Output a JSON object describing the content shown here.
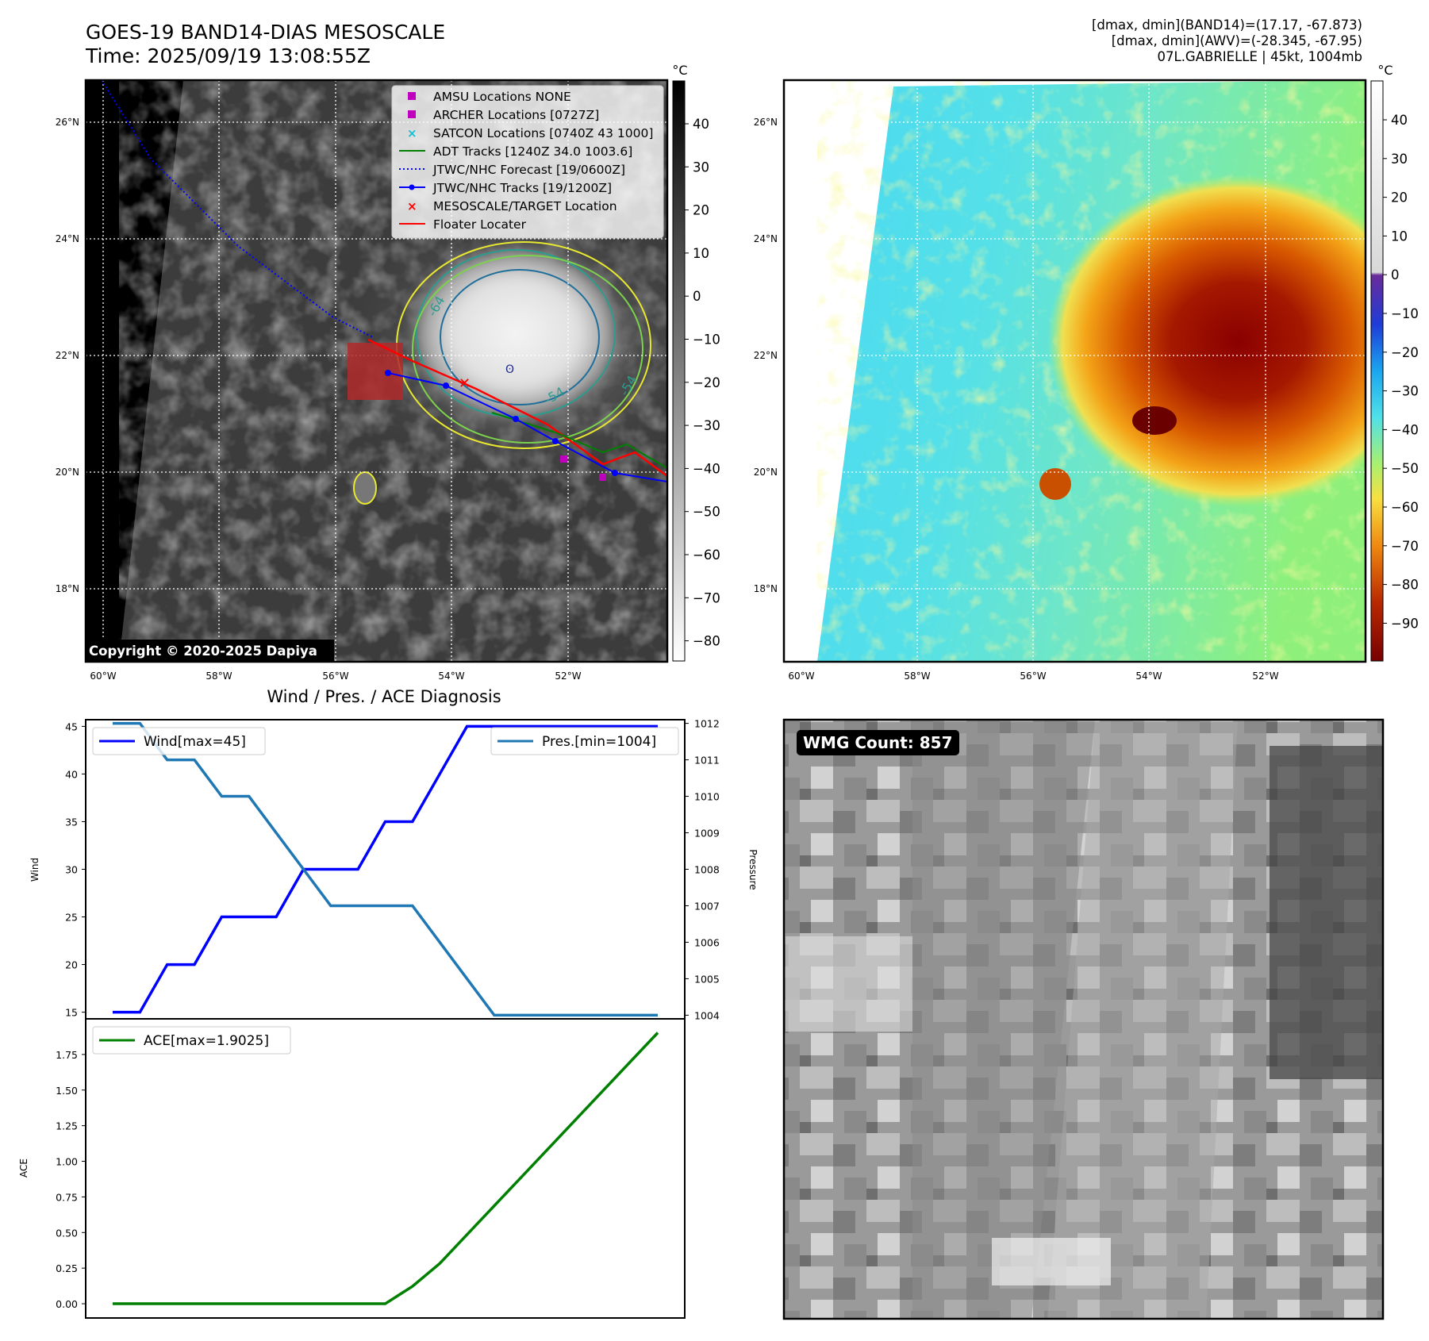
{
  "header": {
    "title_line1": "GOES-19 BAND14-DIAS MESOSCALE",
    "title_line2": "Time: 2025/09/19 13:08:55Z",
    "info_line1": "[dmax, dmin](BAND14)=(17.17, -67.873)",
    "info_line2": "[dmax, dmin](AWV)=(-28.345, -67.95)",
    "info_line3": "07L.GABRIELLE | 45kt, 1004mb"
  },
  "ir_panel": {
    "lat_labels": [
      "26°N",
      "24°N",
      "22°N",
      "20°N",
      "18°N"
    ],
    "lon_labels": [
      "60°W",
      "58°W",
      "56°W",
      "54°W",
      "52°W"
    ],
    "contour_labels": [
      "-64",
      "-54",
      "-54"
    ],
    "copyright": "Copyright © 2020-2025 Dapiya",
    "colorbar_unit": "°C",
    "colorbar_ticks": [
      "40",
      "30",
      "20",
      "10",
      "0",
      "−10",
      "−20",
      "−30",
      "−40",
      "−50",
      "−60",
      "−70",
      "−80"
    ],
    "legend": [
      {
        "label": "AMSU Locations NONE",
        "symbol": "square",
        "color": "#bf00bf"
      },
      {
        "label": "ARCHER Locations [0727Z]",
        "symbol": "square",
        "color": "#bf00bf"
      },
      {
        "label": "SATCON Locations [0740Z 43 1000]",
        "symbol": "x",
        "color": "#17becf"
      },
      {
        "label": "ADT Tracks [1240Z 34.0 1003.6]",
        "symbol": "line",
        "color": "#008000"
      },
      {
        "label": "JTWC/NHC Forecast [19/0600Z]",
        "symbol": "dotted",
        "color": "#0000ff"
      },
      {
        "label": "JTWC/NHC Tracks [19/1200Z]",
        "symbol": "line-dot",
        "color": "#0000ff"
      },
      {
        "label": "MESOSCALE/TARGET Location",
        "symbol": "x",
        "color": "#ff0000"
      },
      {
        "label": "Floater Locater",
        "symbol": "line",
        "color": "#ff0000"
      }
    ]
  },
  "awv_panel": {
    "lat_labels": [
      "26°N",
      "24°N",
      "22°N",
      "20°N",
      "18°N"
    ],
    "lon_labels": [
      "60°W",
      "58°W",
      "56°W",
      "54°W",
      "52°W"
    ],
    "colorbar_unit": "°C",
    "colorbar_ticks": [
      "40",
      "30",
      "20",
      "10",
      "0",
      "−10",
      "−20",
      "−30",
      "−40",
      "−50",
      "−60",
      "−70",
      "−80",
      "−90"
    ]
  },
  "wmg_panel": {
    "badge": "WMG Count: 857"
  },
  "chart_data": [
    {
      "type": "line",
      "title": "Wind / Pres. / ACE Diagnosis",
      "ylabel": "Wind",
      "y2label": "Pressure",
      "x": [
        0,
        1,
        2,
        3,
        4,
        5,
        6,
        7,
        8,
        9,
        10,
        11,
        12,
        13,
        14,
        15,
        16,
        17,
        18,
        19,
        20
      ],
      "ylim": [
        14.3,
        45.7
      ],
      "y2lim": [
        1003.9,
        1012.1
      ],
      "yticks": [
        "15",
        "20",
        "25",
        "30",
        "35",
        "40",
        "45"
      ],
      "y2ticks": [
        "1004",
        "1005",
        "1006",
        "1007",
        "1008",
        "1009",
        "1010",
        "1011",
        "1012"
      ],
      "series": [
        {
          "name": "Wind[max=45]",
          "axis": "left",
          "color": "#0000ff",
          "values": [
            15,
            15,
            20,
            20,
            25,
            25,
            25,
            30,
            30,
            30,
            35,
            35,
            40,
            45,
            45,
            45,
            45,
            45,
            45,
            45,
            45
          ]
        },
        {
          "name": "Pres.[min=1004]",
          "axis": "right",
          "color": "#1f77b4",
          "values": [
            1012,
            1012,
            1011,
            1011,
            1010,
            1010,
            1009,
            1008,
            1007,
            1007,
            1007,
            1007,
            1006,
            1005,
            1004,
            1004,
            1004,
            1004,
            1004,
            1004,
            1004
          ]
        }
      ],
      "legend_wind": "Wind[max=45]",
      "legend_pres": "Pres.[min=1004]"
    },
    {
      "type": "line",
      "ylabel": "ACE",
      "x": [
        0,
        1,
        2,
        3,
        4,
        5,
        6,
        7,
        8,
        9,
        10,
        11,
        12,
        13,
        14,
        15,
        16,
        17,
        18,
        19,
        20
      ],
      "ylim": [
        -0.1,
        2.0
      ],
      "yticks": [
        "0.00",
        "0.25",
        "0.50",
        "0.75",
        "1.00",
        "1.25",
        "1.50",
        "1.75"
      ],
      "series": [
        {
          "name": "ACE[max=1.9025]",
          "color": "#008000",
          "values": [
            0,
            0,
            0,
            0,
            0,
            0,
            0,
            0,
            0,
            0,
            0,
            0.1225,
            0.2825,
            0.485,
            0.6875,
            0.89,
            1.0925,
            1.295,
            1.4975,
            1.7,
            1.9025
          ]
        }
      ],
      "legend_ace": "ACE[max=1.9025]"
    }
  ]
}
